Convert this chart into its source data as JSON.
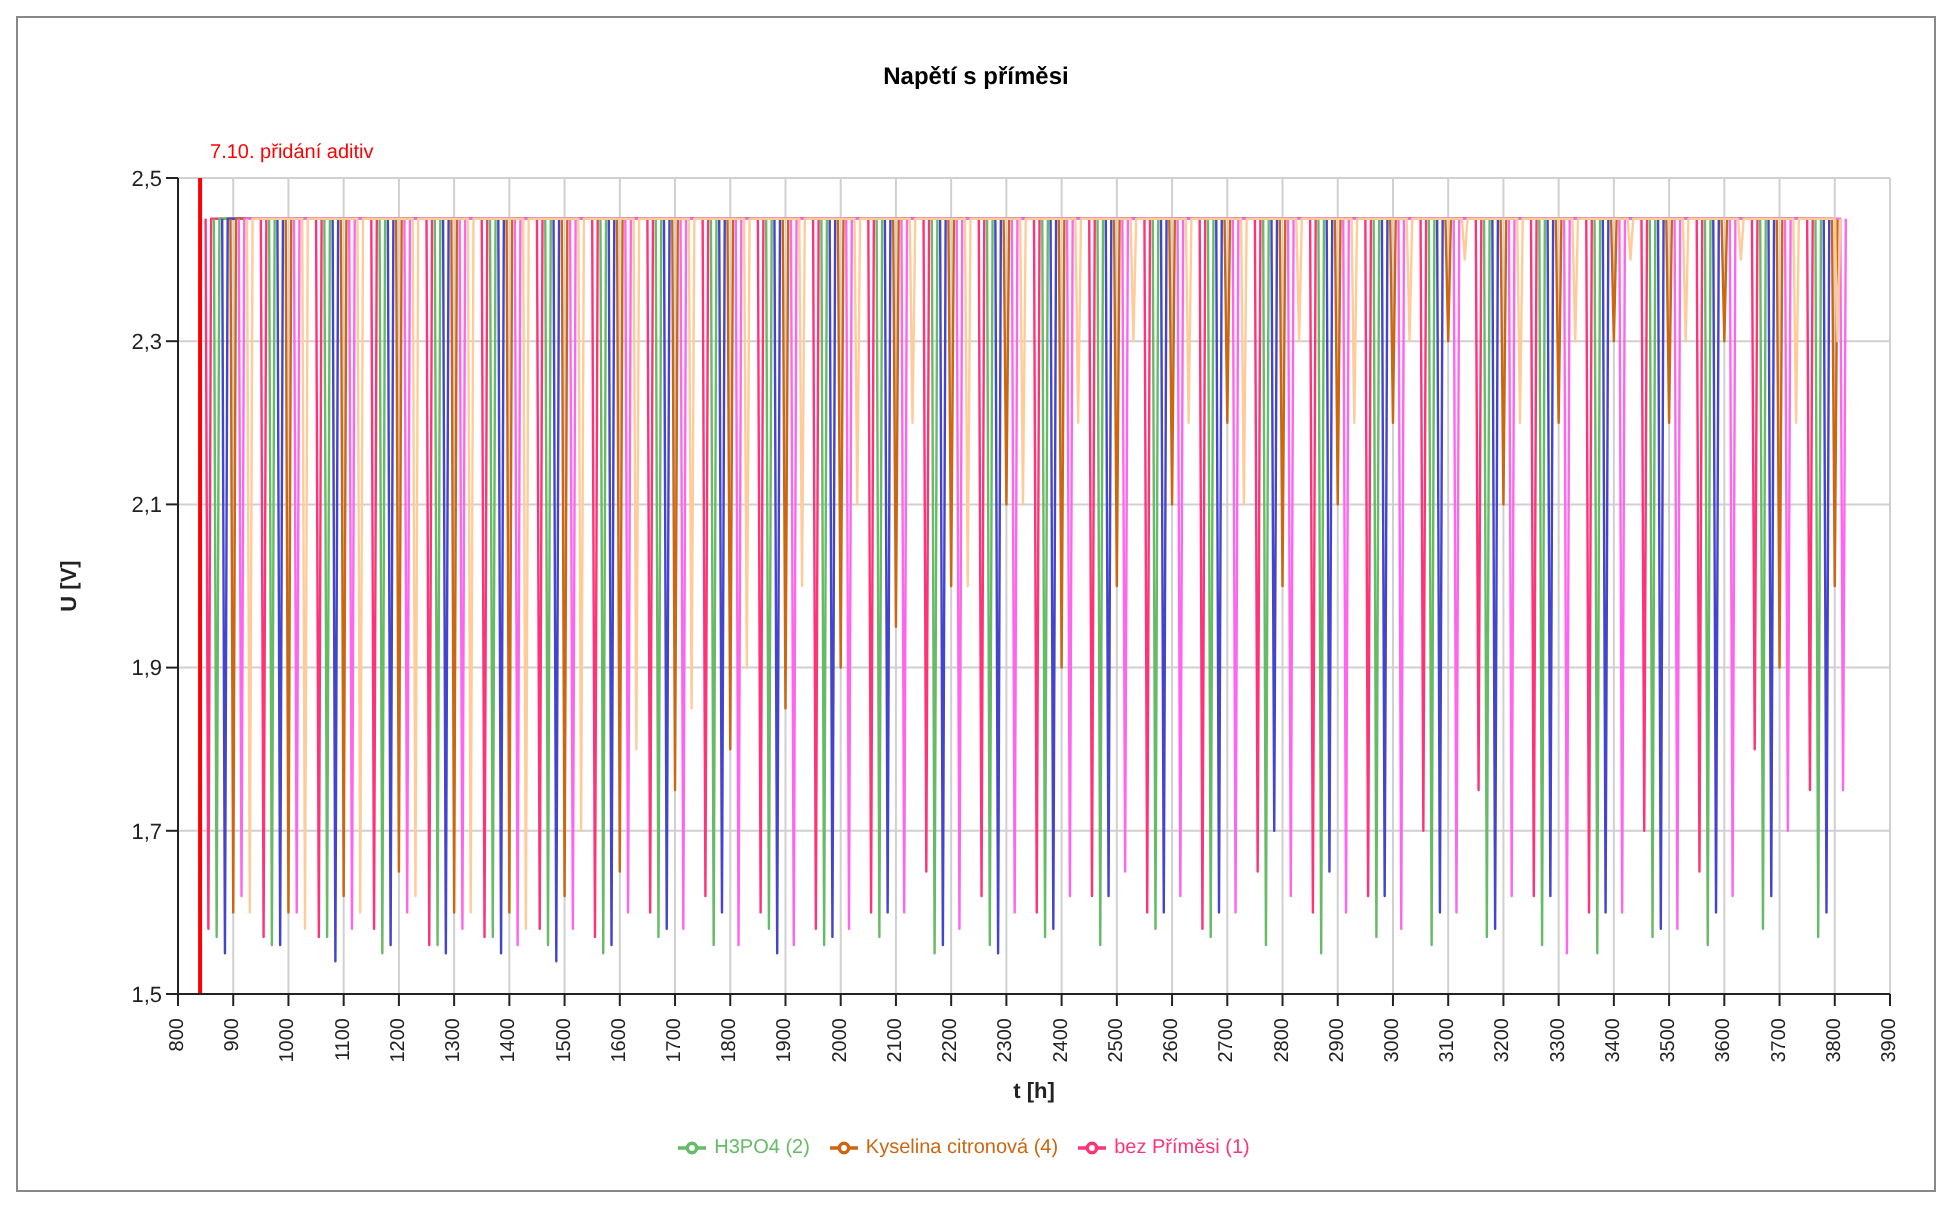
{
  "chart_data": {
    "type": "line",
    "title": "Napětí s příměsi",
    "xlabel": "t [h]",
    "ylabel": "U [V]",
    "xlim": [
      800,
      3900
    ],
    "xticks": [
      800,
      900,
      1000,
      1100,
      1200,
      1300,
      1400,
      1500,
      1600,
      1700,
      1800,
      1900,
      2000,
      2100,
      2200,
      2300,
      2400,
      2500,
      2600,
      2700,
      2800,
      2900,
      3000,
      3100,
      3200,
      3300,
      3400,
      3500,
      3600,
      3700,
      3800,
      3900
    ],
    "ylim": [
      1.5,
      2.5
    ],
    "yticks": [
      {
        "value": 1.5,
        "label": "1,5"
      },
      {
        "value": 1.7,
        "label": "1,7"
      },
      {
        "value": 1.9,
        "label": "1,9"
      },
      {
        "value": 2.1,
        "label": "2,1"
      },
      {
        "value": 2.3,
        "label": "2,3"
      },
      {
        "value": 2.5,
        "label": "2,5"
      }
    ],
    "grid": true,
    "legend": "bottom",
    "ref_lines": [
      {
        "axis": "x",
        "value": 840,
        "label": "7.10. přidání aditiv",
        "color": "#ff0000"
      }
    ],
    "series": [
      {
        "name": "bez Příměsi (1)",
        "color": "#ff3377",
        "x": [
          850,
          855,
          860,
          950,
          955,
          960,
          1050,
          1055,
          1060,
          1150,
          1155,
          1160,
          1250,
          1255,
          1260,
          1350,
          1355,
          1360,
          1450,
          1455,
          1460,
          1550,
          1555,
          1560,
          1650,
          1655,
          1660,
          1750,
          1755,
          1760,
          1850,
          1855,
          1860,
          1950,
          1955,
          1960,
          2050,
          2055,
          2060,
          2150,
          2155,
          2160,
          2250,
          2255,
          2260,
          2350,
          2355,
          2360,
          2450,
          2455,
          2460,
          2550,
          2555,
          2560,
          2650,
          2655,
          2660,
          2750,
          2755,
          2760,
          2850,
          2855,
          2860,
          2950,
          2955,
          2960,
          3050,
          3055,
          3060,
          3150,
          3155,
          3160,
          3250,
          3255,
          3260,
          3350,
          3355,
          3360,
          3450,
          3455,
          3460,
          3550,
          3555,
          3560,
          3650,
          3655,
          3660,
          3750,
          3755,
          3760
        ],
        "values": [
          2.45,
          1.58,
          2.45,
          2.45,
          1.57,
          2.45,
          2.45,
          1.57,
          2.45,
          2.45,
          1.58,
          2.45,
          2.45,
          1.56,
          2.45,
          2.45,
          1.57,
          2.45,
          2.45,
          1.58,
          2.45,
          2.45,
          1.57,
          2.45,
          2.45,
          1.6,
          2.45,
          2.45,
          1.62,
          2.45,
          2.45,
          1.6,
          2.45,
          2.45,
          1.58,
          2.45,
          2.45,
          1.6,
          2.45,
          2.45,
          1.65,
          2.45,
          2.45,
          1.62,
          2.45,
          2.45,
          1.6,
          2.45,
          2.45,
          1.62,
          2.45,
          2.45,
          1.6,
          2.45,
          2.45,
          1.58,
          2.45,
          2.45,
          1.65,
          2.45,
          2.45,
          1.6,
          2.45,
          2.45,
          1.62,
          2.45,
          2.45,
          1.7,
          2.45,
          2.45,
          1.75,
          2.45,
          2.45,
          1.62,
          2.45,
          2.45,
          1.6,
          2.45,
          2.45,
          1.7,
          2.45,
          2.45,
          1.65,
          2.45,
          2.45,
          1.8,
          2.45,
          2.45,
          1.75,
          2.45
        ]
      },
      {
        "name": "H3PO4 (2)",
        "color": "#66bb66",
        "x": [
          865,
          870,
          875,
          965,
          970,
          975,
          1065,
          1070,
          1075,
          1165,
          1170,
          1175,
          1265,
          1270,
          1275,
          1365,
          1370,
          1375,
          1465,
          1470,
          1475,
          1565,
          1570,
          1575,
          1665,
          1670,
          1675,
          1765,
          1770,
          1775,
          1865,
          1870,
          1875,
          1965,
          1970,
          1975,
          2065,
          2070,
          2075,
          2165,
          2170,
          2175,
          2265,
          2270,
          2275,
          2365,
          2370,
          2375,
          2465,
          2470,
          2475,
          2565,
          2570,
          2575,
          2665,
          2670,
          2675,
          2765,
          2770,
          2775,
          2865,
          2870,
          2875,
          2965,
          2970,
          2975,
          3065,
          3070,
          3075,
          3165,
          3170,
          3175,
          3265,
          3270,
          3275,
          3365,
          3370,
          3375,
          3465,
          3470,
          3475,
          3565,
          3570,
          3575,
          3665,
          3670,
          3675,
          3765,
          3770,
          3775
        ],
        "values": [
          2.45,
          1.57,
          2.45,
          2.45,
          1.56,
          2.45,
          2.45,
          1.57,
          2.45,
          2.45,
          1.55,
          2.45,
          2.45,
          1.56,
          2.45,
          2.45,
          1.57,
          2.45,
          2.45,
          1.56,
          2.45,
          2.45,
          1.55,
          2.45,
          2.45,
          1.57,
          2.45,
          2.45,
          1.56,
          2.45,
          2.45,
          1.58,
          2.45,
          2.45,
          1.56,
          2.45,
          2.45,
          1.57,
          2.45,
          2.45,
          1.55,
          2.45,
          2.45,
          1.56,
          2.45,
          2.45,
          1.57,
          2.45,
          2.45,
          1.56,
          2.45,
          2.45,
          1.58,
          2.45,
          2.45,
          1.57,
          2.45,
          2.45,
          1.56,
          2.45,
          2.45,
          1.55,
          2.45,
          2.45,
          1.57,
          2.45,
          2.45,
          1.56,
          2.45,
          2.45,
          1.57,
          2.45,
          2.45,
          1.56,
          2.45,
          2.45,
          1.55,
          2.45,
          2.45,
          1.57,
          2.45,
          2.45,
          1.56,
          2.45,
          2.45,
          1.58,
          2.45,
          2.45,
          1.57,
          2.45
        ]
      },
      {
        "color": "#4444cc",
        "x": [
          880,
          885,
          890,
          980,
          985,
          990,
          1080,
          1085,
          1090,
          1180,
          1185,
          1190,
          1280,
          1285,
          1290,
          1380,
          1385,
          1390,
          1480,
          1485,
          1490,
          1580,
          1585,
          1590,
          1680,
          1685,
          1690,
          1780,
          1785,
          1790,
          1880,
          1885,
          1890,
          1980,
          1985,
          1990,
          2080,
          2085,
          2090,
          2180,
          2185,
          2190,
          2280,
          2285,
          2290,
          2380,
          2385,
          2390,
          2480,
          2485,
          2490,
          2580,
          2585,
          2590,
          2680,
          2685,
          2690,
          2780,
          2785,
          2790,
          2880,
          2885,
          2890,
          2980,
          2985,
          2990,
          3080,
          3085,
          3090,
          3180,
          3185,
          3190,
          3280,
          3285,
          3290,
          3380,
          3385,
          3390,
          3480,
          3485,
          3490,
          3580,
          3585,
          3590,
          3680,
          3685,
          3690,
          3780,
          3785,
          3790
        ],
        "values": [
          2.45,
          1.55,
          2.45,
          2.45,
          1.56,
          2.45,
          2.45,
          1.54,
          2.45,
          2.45,
          1.56,
          2.45,
          2.45,
          1.55,
          2.45,
          2.45,
          1.55,
          2.45,
          2.45,
          1.54,
          2.45,
          2.45,
          1.56,
          2.45,
          2.45,
          1.58,
          2.45,
          2.45,
          1.6,
          2.45,
          2.45,
          1.55,
          2.45,
          2.45,
          1.57,
          2.45,
          2.45,
          1.6,
          2.45,
          2.45,
          1.56,
          2.45,
          2.45,
          1.55,
          2.45,
          2.45,
          1.58,
          2.45,
          2.45,
          1.62,
          2.45,
          2.45,
          1.6,
          2.45,
          2.45,
          1.6,
          2.45,
          2.45,
          1.7,
          2.45,
          2.45,
          1.65,
          2.45,
          2.45,
          1.62,
          2.45,
          2.45,
          1.6,
          2.45,
          2.45,
          1.58,
          2.45,
          2.45,
          1.62,
          2.45,
          2.45,
          1.6,
          2.45,
          2.45,
          1.58,
          2.45,
          2.45,
          1.6,
          2.45,
          2.45,
          1.62,
          2.45,
          2.45,
          1.6,
          2.45
        ]
      },
      {
        "name": "Kyselina citronová (4)",
        "color": "#cc6611",
        "x": [
          895,
          900,
          905,
          995,
          1000,
          1005,
          1095,
          1100,
          1105,
          1195,
          1200,
          1205,
          1295,
          1300,
          1305,
          1395,
          1400,
          1405,
          1495,
          1500,
          1505,
          1595,
          1600,
          1605,
          1695,
          1700,
          1705,
          1795,
          1800,
          1805,
          1895,
          1900,
          1905,
          1995,
          2000,
          2005,
          2095,
          2100,
          2105,
          2195,
          2200,
          2205,
          2295,
          2300,
          2305,
          2395,
          2400,
          2405,
          2495,
          2500,
          2505,
          2595,
          2600,
          2605,
          2695,
          2700,
          2705,
          2795,
          2800,
          2805,
          2895,
          2900,
          2905,
          2995,
          3000,
          3005,
          3095,
          3100,
          3105,
          3195,
          3200,
          3205,
          3295,
          3300,
          3305,
          3395,
          3400,
          3405,
          3495,
          3500,
          3505,
          3595,
          3600,
          3605,
          3695,
          3700,
          3705,
          3795,
          3800,
          3805
        ],
        "values": [
          2.45,
          1.6,
          2.45,
          2.45,
          1.6,
          2.45,
          2.45,
          1.62,
          2.45,
          2.45,
          1.65,
          2.45,
          2.45,
          1.6,
          2.45,
          2.45,
          1.6,
          2.45,
          2.45,
          1.62,
          2.45,
          2.45,
          1.65,
          2.45,
          2.45,
          1.75,
          2.45,
          2.45,
          1.8,
          2.45,
          2.45,
          1.85,
          2.45,
          2.45,
          1.9,
          2.45,
          2.45,
          1.95,
          2.45,
          2.45,
          2.0,
          2.45,
          2.45,
          2.1,
          2.45,
          2.45,
          1.9,
          2.45,
          2.45,
          2.0,
          2.45,
          2.45,
          2.1,
          2.45,
          2.45,
          2.2,
          2.45,
          2.45,
          2.0,
          2.45,
          2.45,
          2.1,
          2.45,
          2.45,
          2.2,
          2.45,
          2.45,
          2.3,
          2.45,
          2.45,
          2.1,
          2.45,
          2.45,
          2.2,
          2.45,
          2.45,
          2.3,
          2.45,
          2.45,
          2.2,
          2.45,
          2.45,
          2.3,
          2.45,
          2.45,
          1.9,
          2.45,
          2.45,
          2.0,
          2.45
        ]
      },
      {
        "color": "#ff66ee",
        "x": [
          910,
          915,
          920,
          1010,
          1015,
          1020,
          1110,
          1115,
          1120,
          1210,
          1215,
          1220,
          1310,
          1315,
          1320,
          1410,
          1415,
          1420,
          1510,
          1515,
          1520,
          1610,
          1615,
          1620,
          1710,
          1715,
          1720,
          1810,
          1815,
          1820,
          1910,
          1915,
          1920,
          2010,
          2015,
          2020,
          2110,
          2115,
          2120,
          2210,
          2215,
          2220,
          2310,
          2315,
          2320,
          2410,
          2415,
          2420,
          2510,
          2515,
          2520,
          2610,
          2615,
          2620,
          2710,
          2715,
          2720,
          2810,
          2815,
          2820,
          2910,
          2915,
          2920,
          3010,
          3015,
          3020,
          3110,
          3115,
          3120,
          3210,
          3215,
          3220,
          3310,
          3315,
          3320,
          3410,
          3415,
          3420,
          3510,
          3515,
          3520,
          3610,
          3615,
          3620,
          3710,
          3715,
          3720,
          3810,
          3815,
          3820
        ],
        "values": [
          2.45,
          1.62,
          2.45,
          2.45,
          1.6,
          2.45,
          2.45,
          1.58,
          2.45,
          2.45,
          1.6,
          2.45,
          2.45,
          1.58,
          2.45,
          2.45,
          1.56,
          2.45,
          2.45,
          1.58,
          2.45,
          2.45,
          1.6,
          2.45,
          2.45,
          1.58,
          2.45,
          2.45,
          1.56,
          2.45,
          2.45,
          1.56,
          2.45,
          2.45,
          1.58,
          2.45,
          2.45,
          1.6,
          2.45,
          2.45,
          1.58,
          2.45,
          2.45,
          1.6,
          2.45,
          2.45,
          1.62,
          2.45,
          2.45,
          1.65,
          2.45,
          2.45,
          1.62,
          2.45,
          2.45,
          1.6,
          2.45,
          2.45,
          1.62,
          2.45,
          2.45,
          1.6,
          2.45,
          2.45,
          1.58,
          2.45,
          2.45,
          1.6,
          2.45,
          2.45,
          1.62,
          2.45,
          2.45,
          1.55,
          2.45,
          2.45,
          1.6,
          2.45,
          2.45,
          1.58,
          2.45,
          2.45,
          1.62,
          2.45,
          2.45,
          1.7,
          2.45,
          2.45,
          1.75,
          2.45
        ]
      },
      {
        "color": "#ffcc99",
        "x": [
          925,
          930,
          935,
          1025,
          1030,
          1035,
          1125,
          1130,
          1135,
          1225,
          1230,
          1235,
          1325,
          1330,
          1335,
          1425,
          1430,
          1435,
          1525,
          1530,
          1535,
          1625,
          1630,
          1635,
          1725,
          1730,
          1735,
          1825,
          1830,
          1835,
          1925,
          1930,
          1935,
          2025,
          2030,
          2035,
          2125,
          2130,
          2135,
          2225,
          2230,
          2235,
          2325,
          2330,
          2335,
          2425,
          2430,
          2435,
          2525,
          2530,
          2535,
          2625,
          2630,
          2635,
          2725,
          2730,
          2735,
          2825,
          2830,
          2835,
          2925,
          2930,
          2935,
          3025,
          3030,
          3035,
          3125,
          3130,
          3135,
          3225,
          3230,
          3235,
          3325,
          3330,
          3335,
          3425,
          3430,
          3435,
          3525,
          3530,
          3535,
          3625,
          3630,
          3635,
          3725,
          3730,
          3735,
          3800,
          3805,
          3810
        ],
        "values": [
          2.45,
          1.6,
          2.45,
          2.45,
          1.58,
          2.45,
          2.45,
          1.6,
          2.45,
          2.45,
          1.62,
          2.45,
          2.45,
          1.6,
          2.45,
          2.45,
          1.58,
          2.45,
          2.45,
          1.7,
          2.45,
          2.45,
          1.8,
          2.45,
          2.45,
          1.85,
          2.45,
          2.45,
          1.9,
          2.45,
          2.45,
          2.0,
          2.45,
          2.45,
          2.1,
          2.45,
          2.45,
          2.2,
          2.45,
          2.45,
          2.0,
          2.45,
          2.45,
          2.1,
          2.45,
          2.45,
          2.2,
          2.45,
          2.45,
          2.3,
          2.45,
          2.45,
          2.2,
          2.45,
          2.45,
          2.1,
          2.45,
          2.45,
          2.3,
          2.45,
          2.45,
          2.2,
          2.45,
          2.45,
          2.3,
          2.45,
          2.45,
          2.4,
          2.45,
          2.45,
          2.2,
          2.45,
          2.45,
          2.3,
          2.45,
          2.45,
          2.4,
          2.45,
          2.45,
          2.3,
          2.45,
          2.45,
          2.4,
          2.45,
          2.45,
          2.2,
          2.45,
          2.45,
          2.3,
          2.45
        ]
      }
    ]
  }
}
